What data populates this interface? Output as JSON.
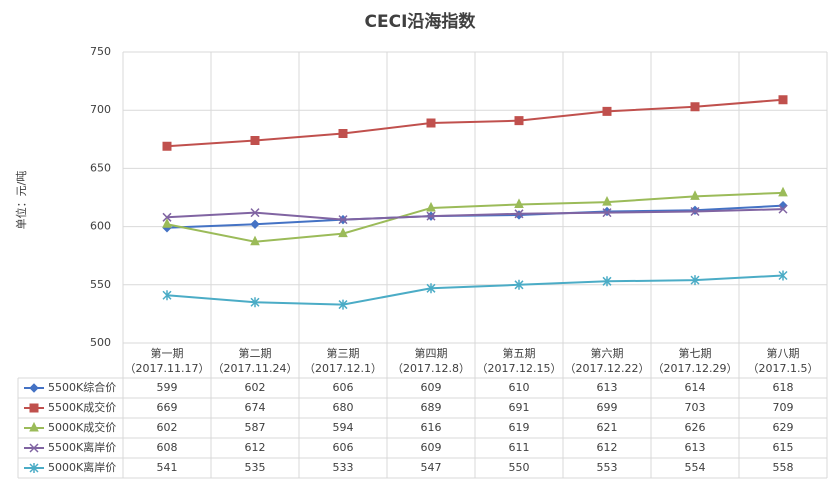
{
  "chart_data": {
    "type": "line",
    "title": "CECI沿海指数",
    "y_label": "单位：元/吨",
    "categories": [
      [
        "第一期",
        "（2017.11.17）"
      ],
      [
        "第二期",
        "（2017.11.24）"
      ],
      [
        "第三期",
        "（2017.12.1）"
      ],
      [
        "第四期",
        "（2017.12.8）"
      ],
      [
        "第五期",
        "（2017.12.15）"
      ],
      [
        "第六期",
        "（2017.12.22）"
      ],
      [
        "第七期",
        "（2017.12.29）"
      ],
      [
        "第八期",
        "（2017.1.5）"
      ]
    ],
    "series": [
      {
        "name": "5500K综合价",
        "color": "#4472c4",
        "marker": "diamond",
        "values": [
          599,
          602,
          606,
          609,
          610,
          613,
          614,
          618
        ]
      },
      {
        "name": "5500K成交价",
        "color": "#c0504d",
        "marker": "square",
        "values": [
          669,
          674,
          680,
          689,
          691,
          699,
          703,
          709
        ]
      },
      {
        "name": "5000K成交价",
        "color": "#9bbb59",
        "marker": "triangle",
        "values": [
          602,
          587,
          594,
          616,
          619,
          621,
          626,
          629
        ]
      },
      {
        "name": "5500K离岸价",
        "color": "#8064a2",
        "marker": "x",
        "values": [
          608,
          612,
          606,
          609,
          611,
          612,
          613,
          615
        ]
      },
      {
        "name": "5000K离岸价",
        "color": "#4bacc6",
        "marker": "star",
        "values": [
          541,
          535,
          533,
          547,
          550,
          553,
          554,
          558
        ]
      }
    ],
    "ylim": [
      500,
      750
    ],
    "yticks": [
      500,
      550,
      600,
      650,
      700,
      750
    ],
    "grid": true,
    "data_table": true
  }
}
